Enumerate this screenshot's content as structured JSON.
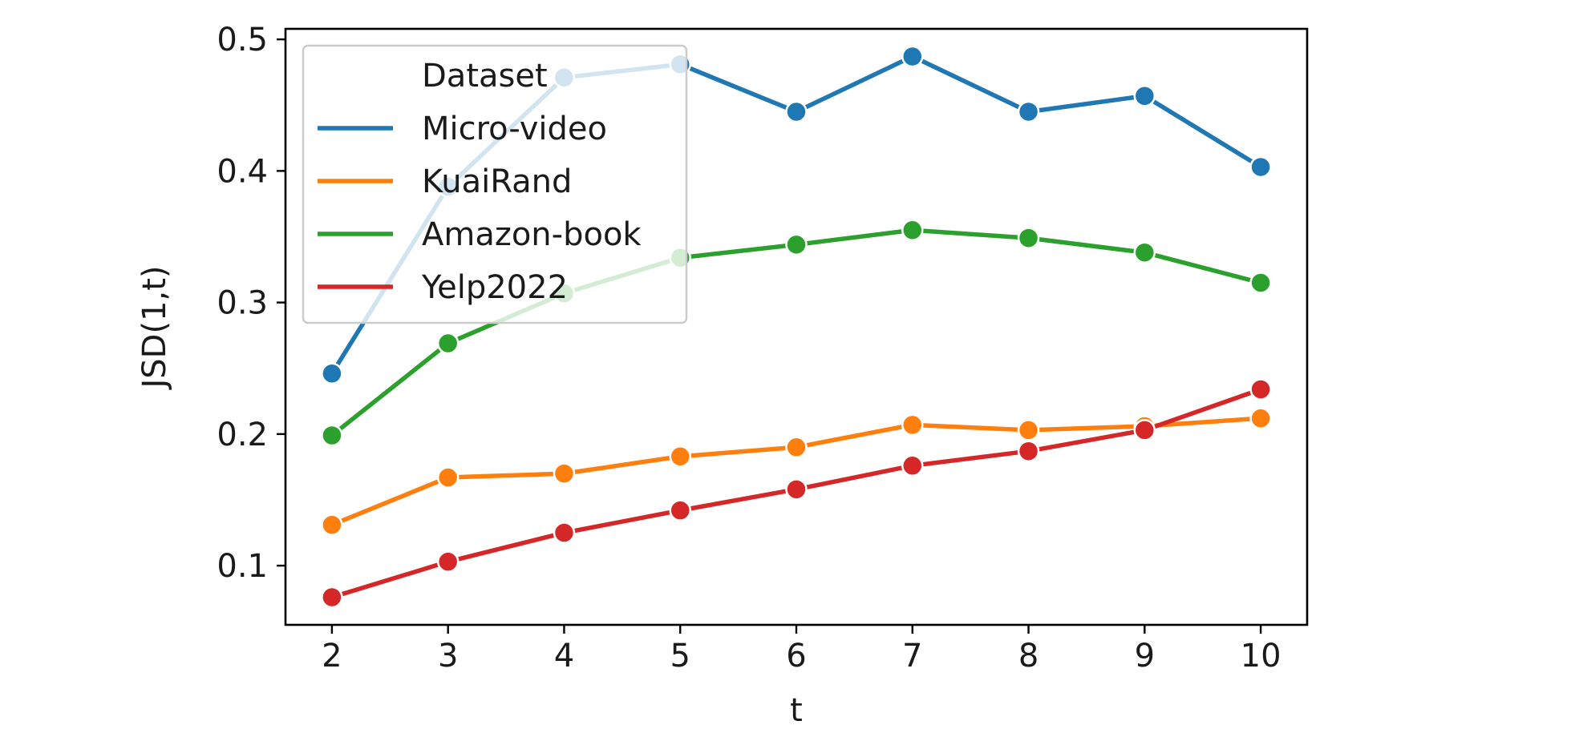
{
  "chart_data": {
    "type": "line",
    "title": "",
    "xlabel": "t",
    "ylabel": "JSD(1,t)",
    "x": [
      2,
      3,
      4,
      5,
      6,
      7,
      8,
      9,
      10
    ],
    "xlim": [
      1.6,
      10.4
    ],
    "ylim": [
      0.055,
      0.508
    ],
    "xticks": [
      2,
      3,
      4,
      5,
      6,
      7,
      8,
      9,
      10
    ],
    "yticks": [
      0.1,
      0.2,
      0.3,
      0.4,
      0.5
    ],
    "ytick_labels": [
      "0.1",
      "0.2",
      "0.3",
      "0.4",
      "0.5"
    ],
    "grid": false,
    "markers": true,
    "legend": {
      "title": "Dataset",
      "placement": "top-left"
    },
    "series": [
      {
        "name": "Micro-video",
        "color": "#1f77b4",
        "values": [
          0.246,
          0.388,
          0.471,
          0.481,
          0.445,
          0.487,
          0.445,
          0.457,
          0.403
        ]
      },
      {
        "name": "KuaiRand",
        "color": "#ff7f0e",
        "values": [
          0.131,
          0.167,
          0.17,
          0.183,
          0.19,
          0.207,
          0.203,
          0.206,
          0.212
        ]
      },
      {
        "name": "Amazon-book",
        "color": "#2ca02c",
        "values": [
          0.199,
          0.269,
          0.307,
          0.334,
          0.344,
          0.355,
          0.349,
          0.338,
          0.315
        ]
      },
      {
        "name": "Yelp2022",
        "color": "#d62728",
        "values": [
          0.076,
          0.103,
          0.125,
          0.142,
          0.158,
          0.176,
          0.187,
          0.203,
          0.234
        ]
      }
    ]
  }
}
